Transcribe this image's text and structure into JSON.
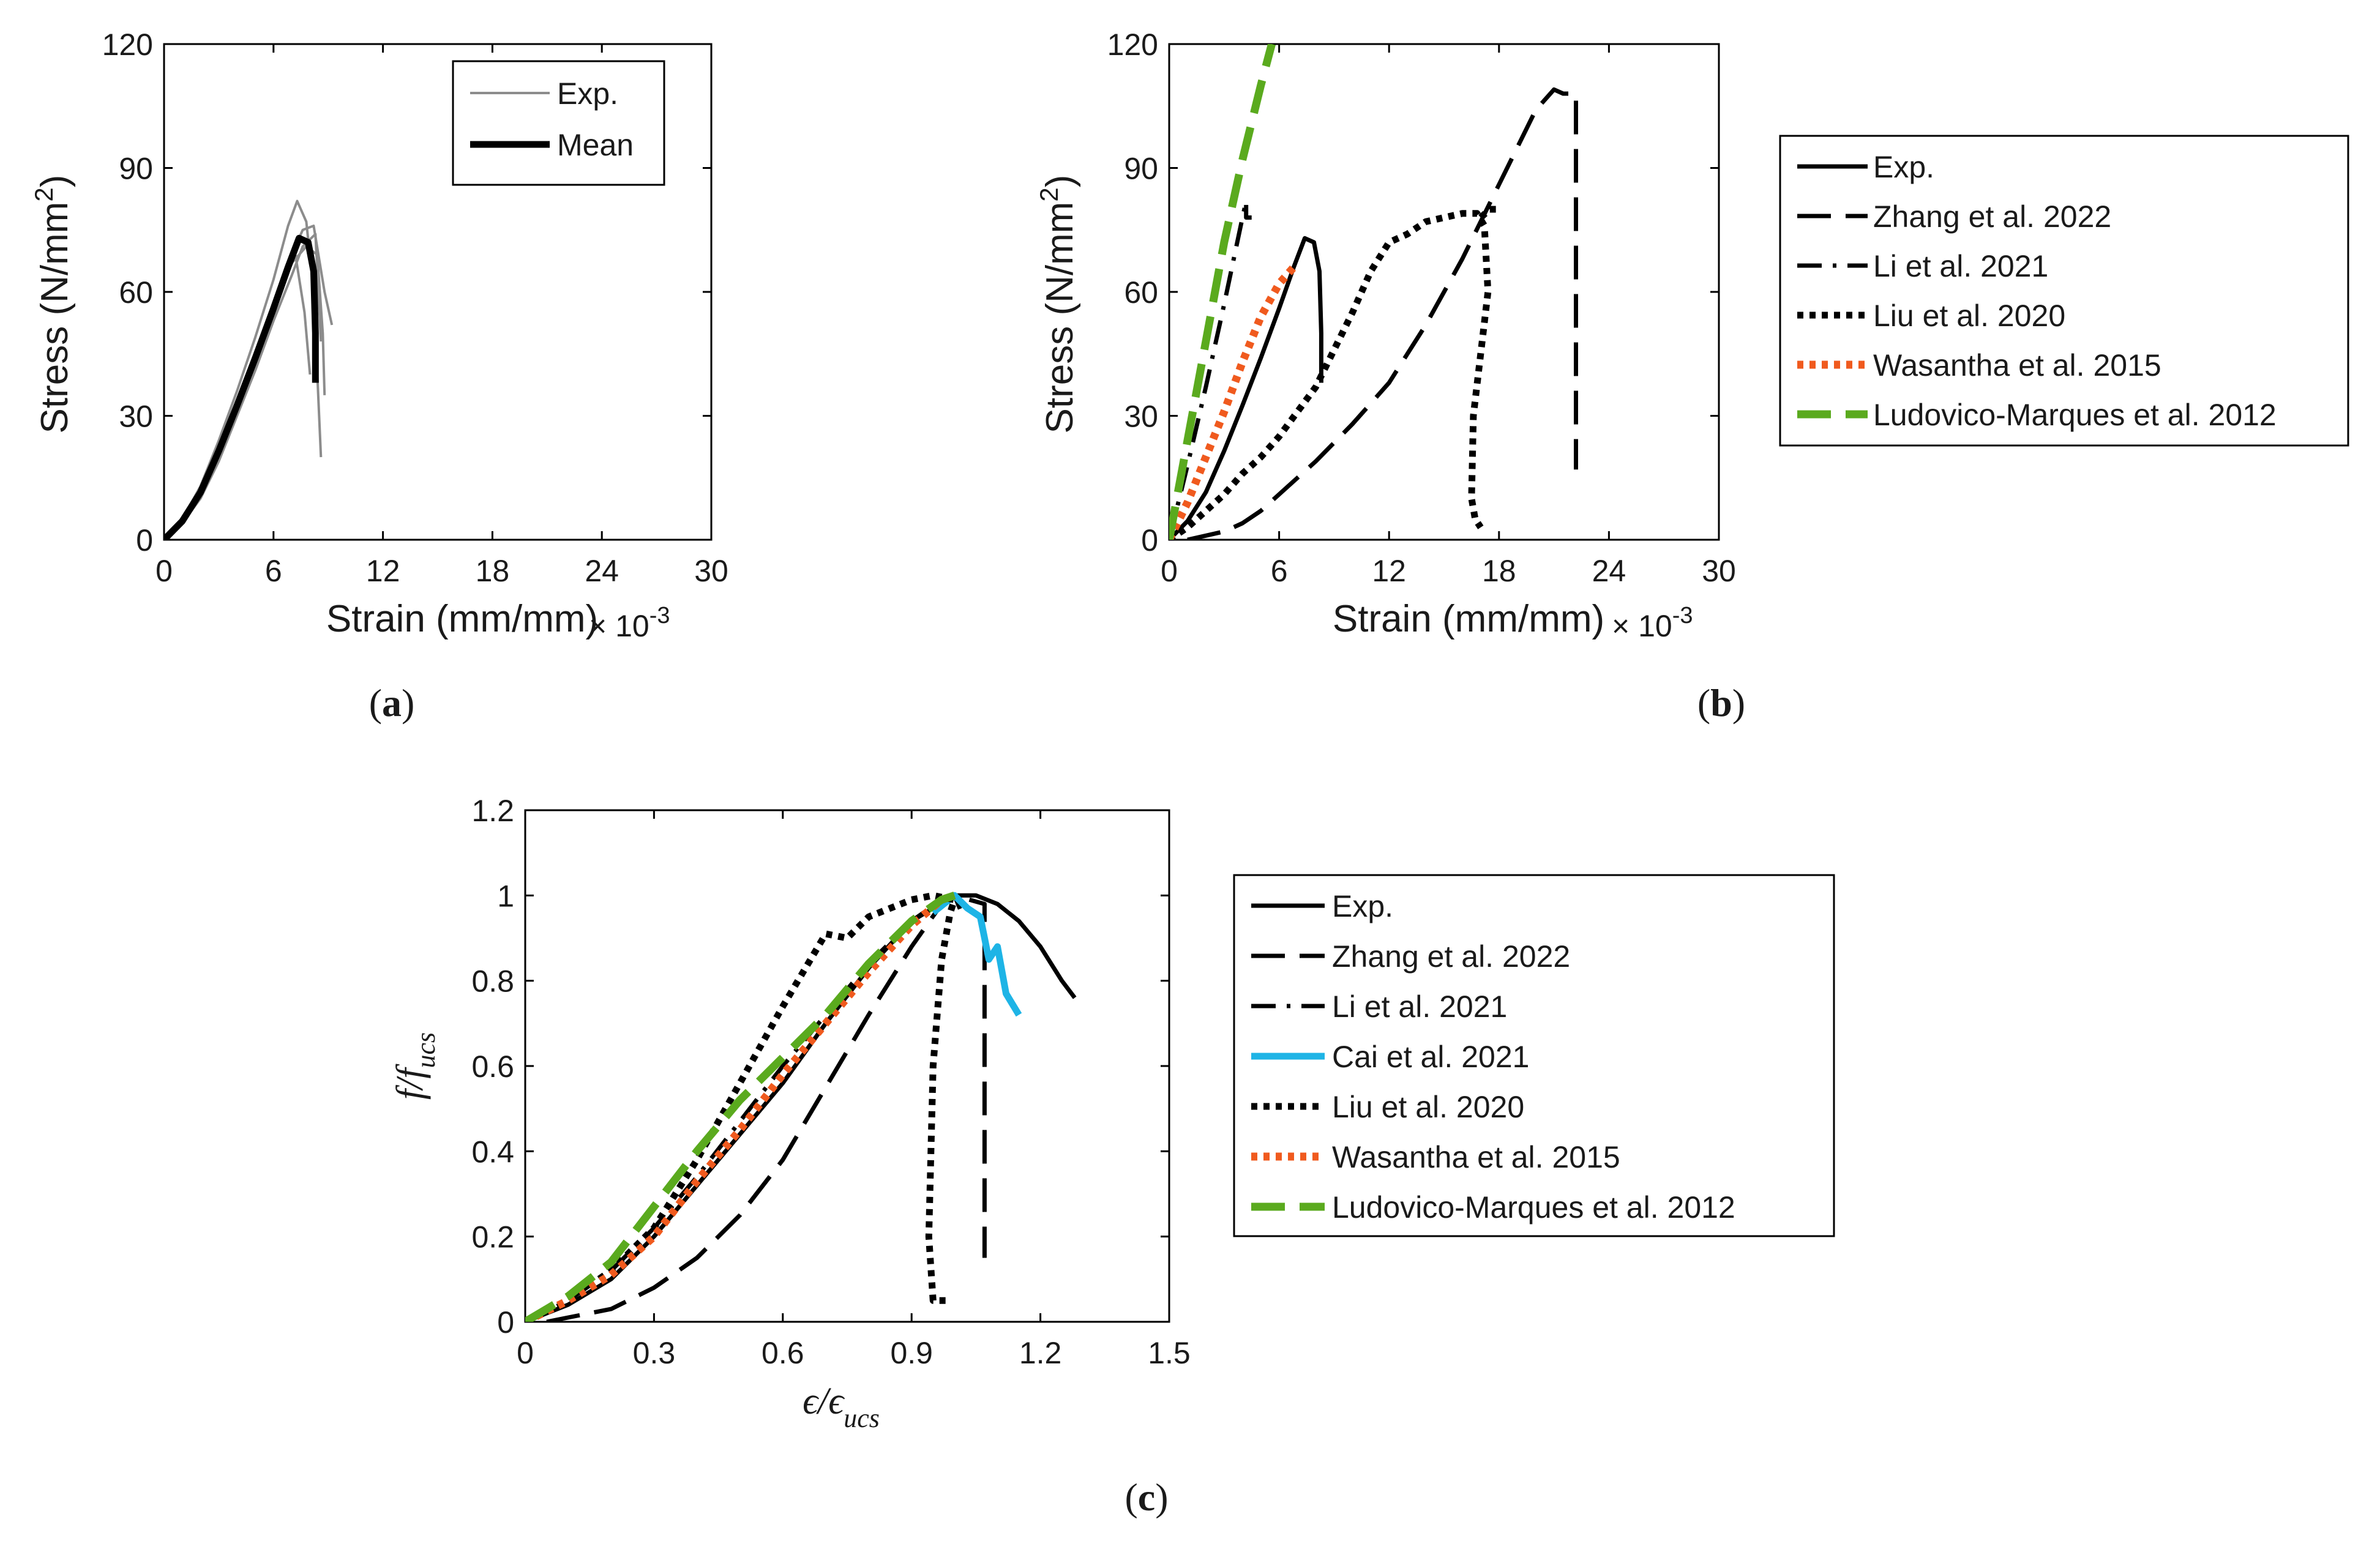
{
  "chart_data": [
    {
      "id": "a",
      "type": "line",
      "caption": "a",
      "xlabel": "Strain (mm/mm)",
      "x_multiplier": "× 10",
      "x_multiplier_exp": "-3",
      "ylabel_main": "Stress (N/mm",
      "ylabel_sup": "2",
      "ylabel_close": ")",
      "xlim": [
        0,
        30
      ],
      "ylim": [
        0,
        120
      ],
      "xticks": [
        0,
        6,
        12,
        18,
        24,
        30
      ],
      "yticks": [
        0,
        30,
        60,
        90,
        120
      ],
      "legend": {
        "position": "top-right",
        "entries": [
          {
            "label": "Exp.",
            "color": "#8c8c8c",
            "style": "solid-thin"
          },
          {
            "label": "Mean",
            "color": "#000000",
            "style": "solid-thick"
          }
        ]
      },
      "series": [
        {
          "name": "Exp.",
          "color": "#8c8c8c",
          "style": "solid-thin",
          "x": [
            0,
            1,
            2,
            3,
            4,
            5,
            6,
            6.8,
            7.3,
            7.8,
            8.2,
            8.6
          ],
          "y": [
            0,
            5,
            13,
            24,
            36,
            49,
            63,
            76,
            82,
            77,
            60,
            20
          ]
        },
        {
          "name": "Exp.",
          "color": "#8c8c8c",
          "style": "solid-thin",
          "x": [
            0,
            1,
            2,
            3,
            4,
            5,
            6,
            7,
            7.6,
            8.2,
            8.8,
            9.2
          ],
          "y": [
            0,
            4,
            11,
            21,
            32,
            44,
            56,
            69,
            75,
            76,
            60,
            52
          ]
        },
        {
          "name": "Exp.",
          "color": "#8c8c8c",
          "style": "solid-thin",
          "x": [
            0,
            1,
            2,
            3,
            4,
            5,
            6,
            7,
            7.8,
            8.4,
            8.7,
            8.8
          ],
          "y": [
            0,
            4,
            11,
            21,
            32,
            43,
            55,
            67,
            71,
            69,
            50,
            35
          ]
        },
        {
          "name": "Exp.",
          "color": "#8c8c8c",
          "style": "solid-thin",
          "x": [
            0,
            1,
            2,
            3,
            4,
            5,
            6,
            6.8,
            7.2,
            7.7,
            8.0
          ],
          "y": [
            0,
            5,
            12,
            22,
            33,
            45,
            57,
            66,
            69,
            55,
            40
          ]
        },
        {
          "name": "Exp.",
          "color": "#8c8c8c",
          "style": "solid-thin",
          "x": [
            0,
            1,
            2,
            3,
            4,
            5,
            6,
            7,
            7.6,
            8.3,
            8.6
          ],
          "y": [
            0,
            4,
            10,
            19,
            30,
            41,
            53,
            64,
            71,
            74,
            48
          ]
        },
        {
          "name": "Mean",
          "color": "#000000",
          "style": "solid-thick",
          "x": [
            0,
            1,
            2,
            3,
            4,
            5,
            6,
            6.8,
            7.4,
            7.9,
            8.2,
            8.3,
            8.3
          ],
          "y": [
            0,
            4.5,
            11.5,
            21.5,
            32.5,
            44,
            56,
            66,
            73,
            72,
            65,
            50,
            38
          ]
        }
      ],
      "caption_label": "a"
    },
    {
      "id": "b",
      "type": "line",
      "caption": "b",
      "xlabel": "Strain (mm/mm)",
      "x_multiplier": "× 10",
      "x_multiplier_exp": "-3",
      "ylabel_main": "Stress (N/mm",
      "ylabel_sup": "2",
      "ylabel_close": ")",
      "xlim": [
        0,
        30
      ],
      "ylim": [
        0,
        120
      ],
      "xticks": [
        0,
        6,
        12,
        18,
        24,
        30
      ],
      "yticks": [
        0,
        30,
        60,
        90,
        120
      ],
      "legend": {
        "position": "outside-right",
        "entries": [
          {
            "label": "Exp.",
            "color": "#000000",
            "style": "solid"
          },
          {
            "label": "Zhang et al. 2022",
            "color": "#000000",
            "style": "dashed"
          },
          {
            "label": "Li et al. 2021",
            "color": "#000000",
            "style": "dashdot"
          },
          {
            "label": "Liu et al. 2020",
            "color": "#000000",
            "style": "dotted"
          },
          {
            "label": "Wasantha et al. 2015",
            "color": "#f05a1e",
            "style": "dotted"
          },
          {
            "label": "Ludovico-Marques et al. 2012",
            "color": "#5aaa1e",
            "style": "dashed"
          }
        ]
      },
      "series": [
        {
          "name": "Exp.",
          "color": "#000000",
          "style": "solid",
          "x": [
            0,
            1,
            2,
            3,
            4,
            5,
            6,
            6.8,
            7.4,
            7.9,
            8.2,
            8.3,
            8.3
          ],
          "y": [
            0,
            4.5,
            11.5,
            21.5,
            32.5,
            44,
            56,
            66,
            73,
            72,
            65,
            50,
            38
          ]
        },
        {
          "name": "Zhang et al. 2022",
          "color": "#000000",
          "style": "dashed",
          "x": [
            1,
            2,
            3,
            4,
            5,
            6,
            8,
            10,
            12,
            14,
            16,
            18,
            20,
            21,
            21.5,
            22.2,
            22.2
          ],
          "y": [
            0,
            1,
            2,
            4,
            7,
            11,
            19,
            28,
            38,
            52,
            68,
            86,
            104,
            109,
            108,
            108,
            17
          ]
        },
        {
          "name": "Li et al. 2021",
          "color": "#000000",
          "style": "dashdot",
          "x": [
            0,
            1,
            2,
            3,
            4,
            4.2,
            4.2,
            4.5
          ],
          "y": [
            0,
            18,
            37,
            57,
            78,
            82,
            78,
            78
          ]
        },
        {
          "name": "Liu et al. 2020",
          "color": "#000000",
          "style": "dotted",
          "x": [
            0,
            1,
            2,
            3,
            4,
            5,
            6,
            7,
            8,
            9,
            10,
            11,
            12,
            13,
            14,
            15,
            16,
            16.8,
            17.2,
            17.4,
            16.6,
            16.5,
            16.7,
            17.0
          ],
          "y": [
            0,
            3,
            7,
            11,
            16,
            20,
            25,
            31,
            37,
            46,
            55,
            65,
            72,
            74,
            77,
            78,
            79,
            79,
            76,
            60,
            30,
            10,
            5,
            3
          ]
        },
        {
          "name": "Liu et al. 2020 (b)",
          "color": "#000000",
          "style": "dotted",
          "x": [
            17,
            17.5,
            18.1
          ],
          "y": [
            78,
            80,
            80
          ]
        },
        {
          "name": "Wasantha et al. 2015",
          "color": "#f05a1e",
          "style": "dotted",
          "x": [
            0,
            1,
            2,
            3,
            4,
            5,
            6,
            6.8
          ],
          "y": [
            0,
            9,
            20,
            31,
            43,
            54,
            62,
            66
          ]
        },
        {
          "name": "Ludovico-Marques et al. 2012",
          "color": "#5aaa1e",
          "style": "dashed",
          "x": [
            0,
            1,
            2,
            3,
            4,
            5,
            5.6
          ],
          "y": [
            0,
            24,
            48,
            72,
            92,
            110,
            120
          ]
        }
      ],
      "caption_label": "b"
    },
    {
      "id": "c",
      "type": "line",
      "caption": "c",
      "xlabel_main": "ϵ/ϵ",
      "xlabel_sub": "ucs",
      "ylabel_main": "f/f",
      "ylabel_sub": "ucs",
      "xlim": [
        0,
        1.5
      ],
      "ylim": [
        0,
        1.2
      ],
      "xticks": [
        "0",
        "0.3",
        "0.6",
        "0.9",
        "1.2",
        "1.5"
      ],
      "yticks": [
        "0",
        "0.2",
        "0.4",
        "0.6",
        "0.8",
        "1",
        "1.2"
      ],
      "legend": {
        "position": "outside-right",
        "entries": [
          {
            "label": "Exp.",
            "color": "#000000",
            "style": "solid"
          },
          {
            "label": "Zhang et al. 2022",
            "color": "#000000",
            "style": "dashed"
          },
          {
            "label": "Li et al. 2021",
            "color": "#000000",
            "style": "dashdot"
          },
          {
            "label": "Cai et al. 2021",
            "color": "#1eb4e6",
            "style": "solid"
          },
          {
            "label": "Liu et al. 2020",
            "color": "#000000",
            "style": "dotted"
          },
          {
            "label": "Wasantha et al. 2015",
            "color": "#f05a1e",
            "style": "dotted"
          },
          {
            "label": "Ludovico-Marques et al. 2012",
            "color": "#5aaa1e",
            "style": "dashed"
          }
        ]
      },
      "series": [
        {
          "name": "Exp.",
          "color": "#000000",
          "style": "solid",
          "x": [
            0,
            0.1,
            0.2,
            0.3,
            0.4,
            0.5,
            0.6,
            0.7,
            0.8,
            0.9,
            1.0,
            1.05,
            1.1,
            1.15,
            1.2,
            1.25,
            1.28
          ],
          "y": [
            0,
            0.04,
            0.1,
            0.2,
            0.32,
            0.44,
            0.56,
            0.7,
            0.83,
            0.94,
            1.0,
            1.0,
            0.98,
            0.94,
            0.88,
            0.8,
            0.76
          ]
        },
        {
          "name": "Zhang et al. 2022",
          "color": "#000000",
          "style": "dashed",
          "x": [
            0.05,
            0.1,
            0.2,
            0.3,
            0.4,
            0.5,
            0.6,
            0.7,
            0.8,
            0.9,
            0.97,
            1.0,
            1.07,
            1.07
          ],
          "y": [
            0,
            0.01,
            0.03,
            0.08,
            0.15,
            0.25,
            0.38,
            0.55,
            0.72,
            0.88,
            0.98,
            1.0,
            0.98,
            0.15
          ]
        },
        {
          "name": "Li et al. 2021",
          "color": "#000000",
          "style": "dashdot",
          "x": [
            0,
            0.1,
            0.2,
            0.3,
            0.4,
            0.5,
            0.6,
            0.7,
            0.8,
            0.9,
            0.97,
            1.0,
            1.02
          ],
          "y": [
            0,
            0.05,
            0.12,
            0.22,
            0.34,
            0.47,
            0.6,
            0.72,
            0.84,
            0.94,
            0.99,
            1.0,
            0.95
          ]
        },
        {
          "name": "Cai et al. 2021",
          "color": "#1eb4e6",
          "style": "solid",
          "x": [
            0.95,
            1.0,
            1.03,
            1.06,
            1.08,
            1.1,
            1.12,
            1.15
          ],
          "y": [
            0.96,
            1.0,
            0.97,
            0.95,
            0.85,
            0.88,
            0.77,
            0.72
          ]
        },
        {
          "name": "Liu et al. 2020",
          "color": "#000000",
          "style": "dotted",
          "x": [
            0,
            0.1,
            0.2,
            0.3,
            0.4,
            0.5,
            0.6,
            0.7,
            0.75,
            0.8,
            0.9,
            0.95,
            1.0,
            0.99,
            0.97,
            0.95,
            0.94,
            0.95,
            0.98
          ],
          "y": [
            0,
            0.05,
            0.12,
            0.22,
            0.38,
            0.56,
            0.74,
            0.91,
            0.9,
            0.95,
            0.99,
            1.0,
            0.99,
            0.96,
            0.85,
            0.6,
            0.2,
            0.05,
            0.05
          ]
        },
        {
          "name": "Wasantha et al. 2015",
          "color": "#f05a1e",
          "style": "dotted",
          "x": [
            0,
            0.1,
            0.2,
            0.3,
            0.4,
            0.5,
            0.6,
            0.7,
            0.8,
            0.9,
            0.97,
            1.0
          ],
          "y": [
            0,
            0.05,
            0.11,
            0.2,
            0.33,
            0.45,
            0.58,
            0.7,
            0.82,
            0.93,
            0.99,
            1.0
          ]
        },
        {
          "name": "Ludovico-Marques et al. 2012",
          "color": "#5aaa1e",
          "style": "dashed",
          "x": [
            0,
            0.1,
            0.2,
            0.3,
            0.4,
            0.5,
            0.6,
            0.7,
            0.8,
            0.9,
            0.97,
            1.0
          ],
          "y": [
            0,
            0.06,
            0.14,
            0.27,
            0.4,
            0.52,
            0.62,
            0.72,
            0.84,
            0.94,
            0.99,
            1.0
          ]
        }
      ],
      "caption_label": "c"
    }
  ]
}
